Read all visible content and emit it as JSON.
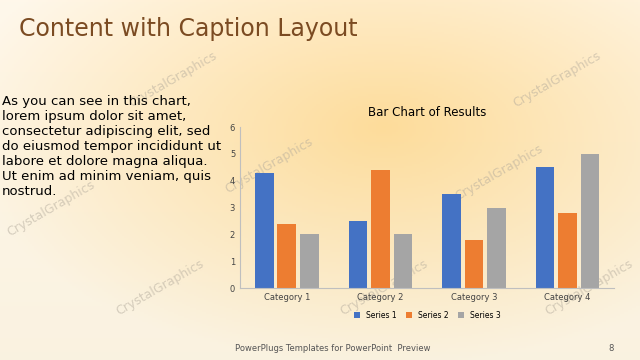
{
  "slide": {
    "title": "Content with Caption Layout",
    "caption": "As you can see in this chart, lorem ipsum dolor sit amet, consectetur adipiscing elit, sed do eiusmod tempor incididunt ut labore et dolore magna aliqua. Ut enim ad minim veniam, quis nostrud.",
    "footer": "PowerPlugs Templates for PowerPoint  Preview",
    "page_number": "8",
    "watermark": "CrystalGraphics"
  },
  "chart_data": {
    "type": "bar",
    "title": "Bar Chart of Results",
    "categories": [
      "Category 1",
      "Category 2",
      "Category 3",
      "Category 4"
    ],
    "series": [
      {
        "name": "Series 1",
        "color": "#4472c4",
        "values": [
          4.3,
          2.5,
          3.5,
          4.5
        ]
      },
      {
        "name": "Series 2",
        "color": "#ed7d31",
        "values": [
          2.4,
          4.4,
          1.8,
          2.8
        ]
      },
      {
        "name": "Series 3",
        "color": "#a5a5a5",
        "values": [
          2,
          2,
          3,
          5
        ]
      }
    ],
    "ylim": [
      0,
      6
    ],
    "yticks": [
      0,
      1,
      2,
      3,
      4,
      5,
      6
    ],
    "grid": false,
    "legend": "bottom"
  }
}
